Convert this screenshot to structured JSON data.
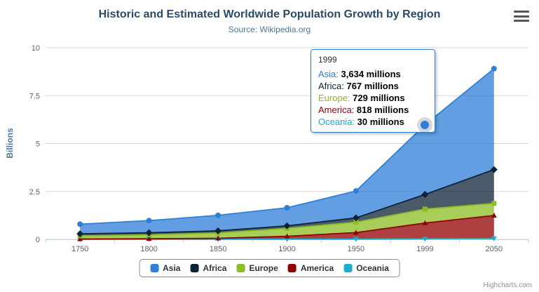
{
  "chart": {
    "title": "Historic and Estimated Worldwide Population Growth by Region",
    "subtitle": "Source: Wikipedia.org",
    "credits": "Highcharts.com"
  },
  "chart_data": {
    "type": "area",
    "stacking": "normal",
    "title": "Historic and Estimated Worldwide Population Growth by Region",
    "subtitle": "Source: Wikipedia.org",
    "categories": [
      "1750",
      "1800",
      "1850",
      "1900",
      "1950",
      "1999",
      "2050"
    ],
    "series": [
      {
        "name": "Asia",
        "color": "#2f7ed8",
        "marker": "circle",
        "values": [
          502,
          635,
          809,
          947,
          1402,
          3634,
          5268
        ]
      },
      {
        "name": "Africa",
        "color": "#0d233a",
        "marker": "diamond",
        "values": [
          106,
          107,
          111,
          133,
          221,
          767,
          1766
        ]
      },
      {
        "name": "Europe",
        "color": "#8bbc21",
        "marker": "square",
        "values": [
          163,
          203,
          276,
          408,
          547,
          729,
          628
        ]
      },
      {
        "name": "America",
        "color": "#910000",
        "marker": "triangle",
        "values": [
          18,
          31,
          54,
          156,
          339,
          818,
          1201
        ]
      },
      {
        "name": "Oceania",
        "color": "#1aadce",
        "marker": "triangle-down",
        "values": [
          2,
          2,
          2,
          6,
          13,
          30,
          46
        ]
      }
    ],
    "values_unit": "millions",
    "xlabel": "",
    "ylabel": "Billions",
    "yticks": [
      0,
      2.5,
      5,
      7.5,
      10
    ],
    "ylim": [
      0,
      10
    ],
    "grid": true,
    "legend_position": "bottom",
    "hover": {
      "series": "Asia",
      "category": "1999"
    }
  },
  "tooltip": {
    "header": "1999",
    "border_color": "#2f7ed8",
    "rows": [
      {
        "name": "Asia",
        "color": "#2f7ed8",
        "value": "3,634 millions"
      },
      {
        "name": "Africa",
        "color": "#0d233a",
        "value": "767 millions"
      },
      {
        "name": "Europe",
        "color": "#8bbc21",
        "value": "729 millions"
      },
      {
        "name": "America",
        "color": "#910000",
        "value": "818 millions"
      },
      {
        "name": "Oceania",
        "color": "#1aadce",
        "value": "30 millions"
      }
    ]
  },
  "colors": {
    "title": "#274b6d",
    "subtitle": "#4d759e",
    "axis_label": "#606060",
    "gridline": "#d8d8d8",
    "axis_line": "#c0d0e0",
    "credits": "#909090"
  }
}
